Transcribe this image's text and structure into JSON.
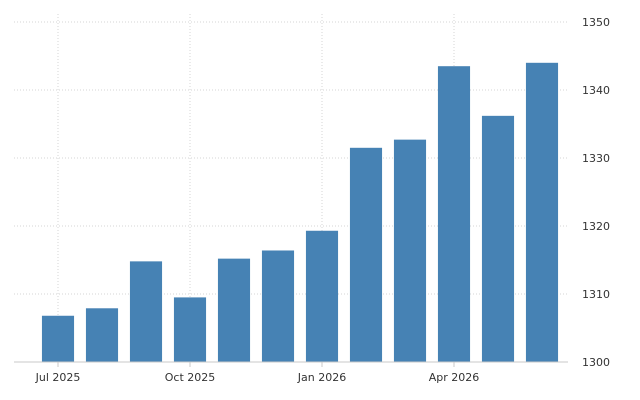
{
  "chart_data": {
    "type": "bar",
    "categories": [
      "2025-07",
      "2025-08",
      "2025-09",
      "2025-10",
      "2025-11",
      "2025-12",
      "2026-01",
      "2026-02",
      "2026-03",
      "2026-04",
      "2026-05",
      "2026-06"
    ],
    "values": [
      1306.8,
      1307.9,
      1314.8,
      1309.5,
      1315.2,
      1316.4,
      1319.3,
      1331.5,
      1332.7,
      1343.5,
      1336.2,
      1344.0
    ],
    "x_tick_labels": [
      "Jul 2025",
      "Oct 2025",
      "Jan 2026",
      "Apr 2026"
    ],
    "x_tick_categories": [
      "2025-07",
      "2025-10",
      "2026-01",
      "2026-04"
    ],
    "y_ticks": [
      1300,
      1310,
      1320,
      1330,
      1340,
      1350
    ],
    "ylim": [
      1300,
      1350
    ],
    "y_axis_side": "right",
    "grid": true,
    "bar_color": "#4682b4",
    "grid_color": "#d6d6d6"
  }
}
